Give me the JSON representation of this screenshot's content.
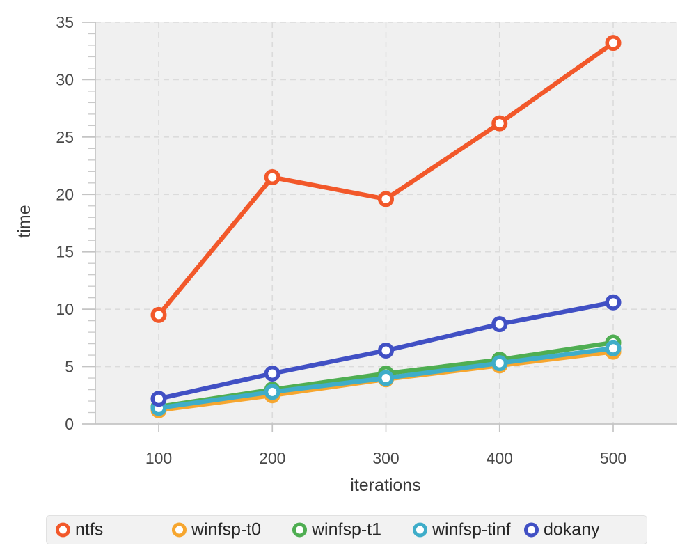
{
  "figure": {
    "background": "#ffffff"
  },
  "chart_data": {
    "type": "line",
    "title": "",
    "xlabel": "iterations",
    "ylabel": "time",
    "x": [
      100,
      200,
      300,
      400,
      500
    ],
    "xticks": [
      100,
      200,
      300,
      400,
      500
    ],
    "xlim": [
      100,
      500
    ],
    "ylim": [
      0,
      35
    ],
    "yticks": {
      "min": 0,
      "max": 35,
      "major_step": 5,
      "minor_step": 1
    },
    "grid": {
      "on": true,
      "style": "dashed",
      "color": "#dbdbdb"
    },
    "plot_background": "#f0f0f0",
    "axis_color": "#c4c4c4",
    "tick_label_color": "#484848",
    "marker": "open-circle",
    "legend": {
      "position": "bottom"
    },
    "series": [
      {
        "name": "ntfs",
        "color": "#f2582a",
        "values": [
          9.5,
          21.5,
          19.6,
          26.2,
          33.2
        ]
      },
      {
        "name": "winfsp-t0",
        "color": "#f6a62f",
        "values": [
          1.2,
          2.5,
          3.9,
          5.1,
          6.3
        ]
      },
      {
        "name": "winfsp-t1",
        "color": "#4fae52",
        "values": [
          1.5,
          3.0,
          4.4,
          5.6,
          7.1
        ]
      },
      {
        "name": "winfsp-tinf",
        "color": "#3fadc9",
        "values": [
          1.4,
          2.8,
          4.0,
          5.3,
          6.6
        ]
      },
      {
        "name": "dokany",
        "color": "#4150c4",
        "values": [
          2.2,
          4.4,
          6.4,
          8.7,
          10.6
        ]
      }
    ]
  }
}
